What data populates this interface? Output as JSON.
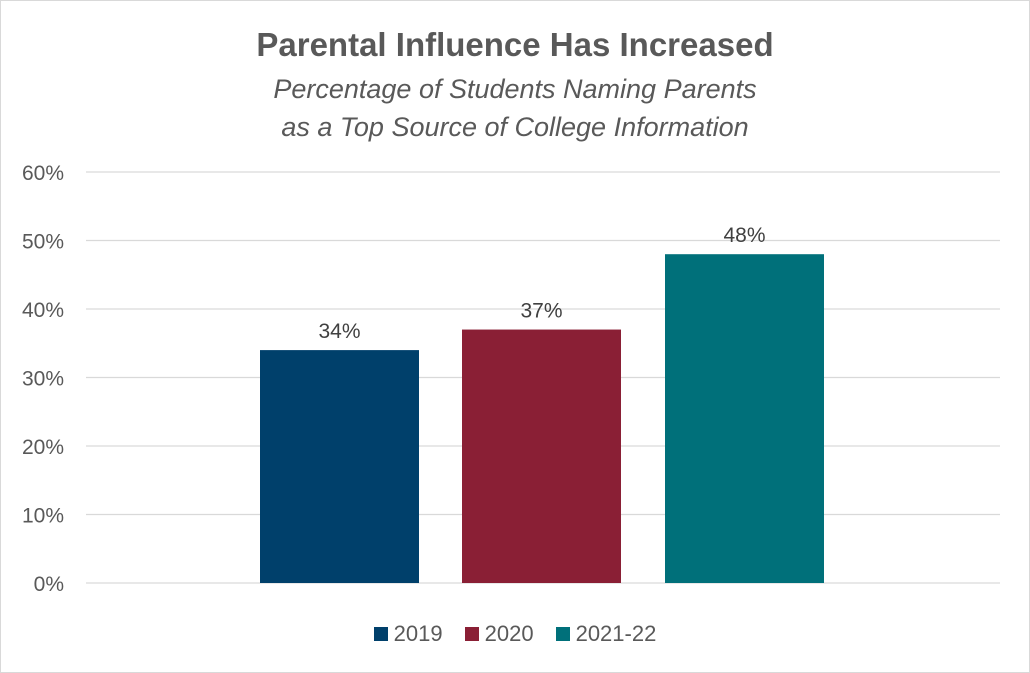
{
  "chart_data": {
    "type": "bar",
    "title": "Parental Influence Has Increased",
    "subtitle": "Percentage of Students Naming Parents as a Top Source of College Information",
    "categories": [
      "2019",
      "2020",
      "2021-22"
    ],
    "values": [
      34,
      37,
      48
    ],
    "data_labels": [
      "34%",
      "37%",
      "48%"
    ],
    "colors": [
      "#00406B",
      "#8A1F35",
      "#00707A"
    ],
    "ylim": [
      0,
      60
    ],
    "yticks": [
      0,
      10,
      20,
      30,
      40,
      50,
      60
    ],
    "ytick_labels": [
      "0%",
      "10%",
      "20%",
      "30%",
      "40%",
      "50%",
      "60%"
    ],
    "grid": true,
    "legend": "bottom",
    "legend_entries": [
      "2019",
      "2020",
      "2021-22"
    ]
  }
}
